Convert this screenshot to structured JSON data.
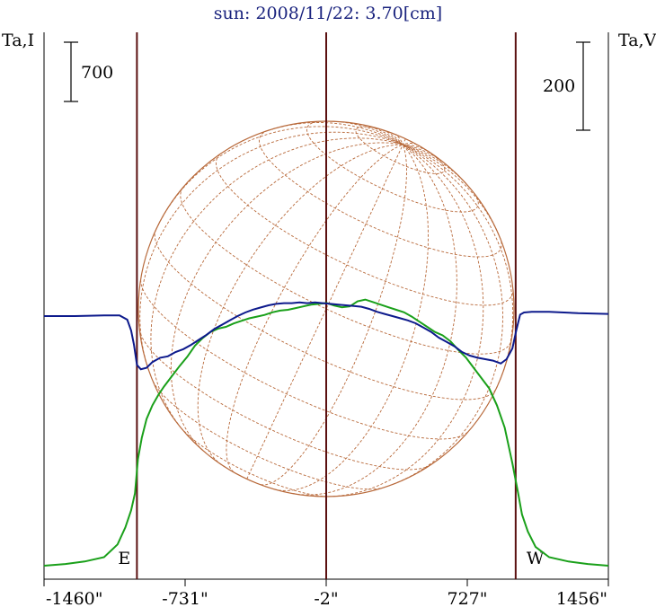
{
  "chart_data": {
    "type": "line",
    "title": "sun: 2008/11/22: 3.70[cm]",
    "ylabel_left": "Ta,I",
    "ylabel_right": "Ta,V",
    "scale_left": {
      "label": "700",
      "value": 700
    },
    "scale_right": {
      "label": "200",
      "value": 200
    },
    "x_ticks": [
      {
        "value": -1460,
        "label": "-1460\""
      },
      {
        "value": -731,
        "label": "-731\""
      },
      {
        "value": -2,
        "label": "-2\""
      },
      {
        "value": 727,
        "label": "727\""
      },
      {
        "value": 1456,
        "label": "1456\""
      }
    ],
    "xlim": [
      -1460,
      1456
    ],
    "markers": [
      {
        "name": "east-limb",
        "value": -980,
        "label": "E"
      },
      {
        "name": "center",
        "value": -2,
        "label": ""
      },
      {
        "name": "west-limb",
        "value": 977,
        "label": "W"
      }
    ],
    "colors": {
      "stokes_i": "#1aa01a",
      "stokes_v": "#0d1a8c",
      "grid": "#b8693a",
      "marker": "#5a1010",
      "title": "#1a237e"
    },
    "series": [
      {
        "key": "stokes_i",
        "x": [
          -1460,
          -1350,
          -1250,
          -1150,
          -1080,
          -1040,
          -1010,
          -990,
          -975,
          -955,
          -930,
          -900,
          -870,
          -840,
          -800,
          -760,
          -720,
          -680,
          -640,
          -600,
          -560,
          -520,
          -480,
          -440,
          -400,
          -360,
          -320,
          -280,
          -240,
          -200,
          -160,
          -120,
          -80,
          -40,
          0,
          40,
          80,
          120,
          160,
          200,
          240,
          280,
          320,
          360,
          400,
          440,
          480,
          520,
          560,
          600,
          640,
          680,
          720,
          760,
          800,
          840,
          880,
          920,
          960,
          990,
          1010,
          1040,
          1080,
          1150,
          1250,
          1350,
          1456
        ],
        "y": [
          0.0,
          0.02,
          0.05,
          0.1,
          0.25,
          0.45,
          0.65,
          0.85,
          1.25,
          1.5,
          1.72,
          1.88,
          2.0,
          2.1,
          2.22,
          2.34,
          2.45,
          2.58,
          2.67,
          2.74,
          2.78,
          2.8,
          2.84,
          2.87,
          2.9,
          2.92,
          2.94,
          2.97,
          2.99,
          3.0,
          3.02,
          3.04,
          3.06,
          3.07,
          3.08,
          3.05,
          3.03,
          3.04,
          3.1,
          3.12,
          3.09,
          3.06,
          3.03,
          3.0,
          2.97,
          2.92,
          2.86,
          2.8,
          2.74,
          2.7,
          2.63,
          2.53,
          2.44,
          2.32,
          2.2,
          2.08,
          1.88,
          1.62,
          1.2,
          0.85,
          0.6,
          0.4,
          0.22,
          0.1,
          0.05,
          0.02,
          0.0
        ]
      },
      {
        "key": "stokes_v",
        "x": [
          -1460,
          -1300,
          -1150,
          -1070,
          -1030,
          -1010,
          -995,
          -980,
          -960,
          -930,
          -900,
          -860,
          -820,
          -780,
          -740,
          -700,
          -660,
          -620,
          -580,
          -540,
          -500,
          -460,
          -420,
          -380,
          -340,
          -300,
          -260,
          -220,
          -180,
          -140,
          -100,
          -60,
          -20,
          20,
          60,
          100,
          140,
          180,
          220,
          260,
          300,
          340,
          380,
          420,
          460,
          500,
          540,
          580,
          620,
          660,
          700,
          740,
          780,
          820,
          860,
          880,
          900,
          930,
          960,
          980,
          1000,
          1020,
          1060,
          1150,
          1300,
          1456
        ],
        "y": [
          0.0,
          0.0,
          0.01,
          0.01,
          -0.05,
          -0.2,
          -0.4,
          -0.68,
          -0.74,
          -0.72,
          -0.64,
          -0.58,
          -0.56,
          -0.5,
          -0.46,
          -0.4,
          -0.33,
          -0.26,
          -0.18,
          -0.12,
          -0.06,
          0.0,
          0.05,
          0.09,
          0.12,
          0.15,
          0.17,
          0.18,
          0.18,
          0.19,
          0.18,
          0.19,
          0.18,
          0.17,
          0.16,
          0.15,
          0.14,
          0.13,
          0.1,
          0.06,
          0.03,
          0.0,
          -0.03,
          -0.06,
          -0.1,
          -0.16,
          -0.22,
          -0.3,
          -0.36,
          -0.42,
          -0.5,
          -0.55,
          -0.58,
          -0.6,
          -0.62,
          -0.64,
          -0.66,
          -0.6,
          -0.45,
          -0.2,
          0.02,
          0.05,
          0.06,
          0.06,
          0.04,
          0.03
        ]
      }
    ]
  }
}
